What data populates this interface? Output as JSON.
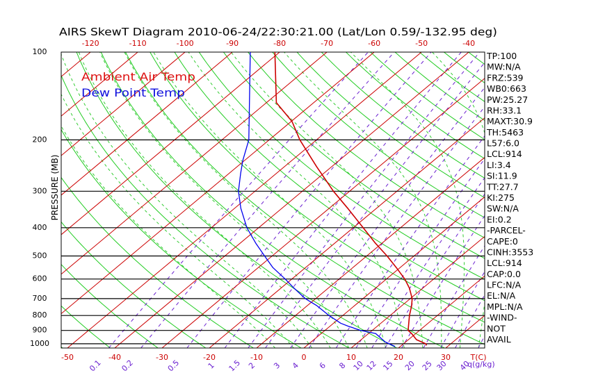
{
  "chart_data": {
    "type": "line",
    "title": "AIRS SkewT Diagram 2010-06-24/22:30:21.00 (Lat/Lon 0.59/-132.95 deg)",
    "xlabel": "T(C)",
    "x2label": "q(g/kg)",
    "ylabel": "PRESSURE (MB)",
    "y_scale": "log",
    "y_direction": "pressure decreasing upward",
    "ylim": [
      1034,
      100
    ],
    "x_axis": "skewed isotherms (temperature, C)",
    "grid": true,
    "legend_position": "top-left",
    "pressure_ticks": [
      "100",
      "200",
      "300",
      "400",
      "500",
      "600",
      "700",
      "800",
      "900",
      "1000"
    ],
    "temperature_ticks_top": [
      "-120",
      "-110",
      "-100",
      "-90",
      "-80",
      "-70",
      "-60",
      "-50",
      "-40"
    ],
    "temperature_ticks_bottom": [
      "-50",
      "-40",
      "-30",
      "-20",
      "-10",
      "0",
      "10",
      "20",
      "30"
    ],
    "mixing_ratio_ticks": [
      "0.1",
      "0.2",
      "0.5",
      "1",
      "1.5",
      "2",
      "3",
      "4",
      "6",
      "8",
      "10",
      "12",
      "15",
      "20",
      "25",
      "30",
      "40"
    ],
    "series": [
      {
        "name": "Ambient Air Temp",
        "color": "#cc0000",
        "pressure": [
          1013,
          1000,
          968,
          922,
          900,
          850,
          800,
          741,
          700,
          645,
          600,
          548,
          500,
          452,
          400,
          343,
          300,
          247,
          200,
          173,
          149,
          100
        ],
        "temperature": [
          25.3,
          24.7,
          21.7,
          19.1,
          17.6,
          15.9,
          14.1,
          12.1,
          10.4,
          7.2,
          3.9,
          -0.8,
          -5.7,
          -11.4,
          -17.9,
          -26.1,
          -33.4,
          -43.2,
          -53.5,
          -59.8,
          -67.9,
          -81.0
        ]
      },
      {
        "name": "Dew Point Temp",
        "color": "#0000ee",
        "pressure": [
          1022,
          985,
          922,
          900,
          870,
          850,
          800,
          741,
          700,
          645,
          600,
          548,
          500,
          452,
          400,
          343,
          300,
          261,
          235,
          200,
          149,
          100
        ],
        "temperature": [
          18.9,
          15.6,
          11.5,
          7.6,
          3.8,
          1.5,
          -2.9,
          -7.9,
          -12.2,
          -17.2,
          -21.4,
          -26.9,
          -31.6,
          -36.7,
          -42.5,
          -48.7,
          -53.5,
          -57.5,
          -60.4,
          -64.3,
          -73.6,
          -86.2
        ]
      }
    ],
    "colors": {
      "isotherm": "#cc0000",
      "dry_adiabat": "#22cc22",
      "moist_adiabat": "#33cc33",
      "mixing_ratio": "#6a1fd0",
      "pressure_line": "#000000",
      "temperature_labels": "#cc0000",
      "mixing_ratio_labels": "#6a1fd0"
    }
  },
  "stats": [
    "TP:100",
    "MW:N/A",
    "FRZ:539",
    "WB0:663",
    "PW:25.27",
    "RH:33.1",
    "MAXT:30.9",
    "TH:5463",
    "L57:6.0",
    "LCL:914",
    "LI:3.4",
    "SI:11.9",
    "TT:27.7",
    "KI:275",
    "SW:N/A",
    "EI:0.2",
    "-PARCEL-",
    "CAPE:0",
    "CINH:3553",
    "LCL:914",
    "CAP:0.0",
    "LFC:N/A",
    "EL:N/A",
    "MPL:N/A",
    "-WIND-",
    "NOT",
    "AVAIL"
  ]
}
